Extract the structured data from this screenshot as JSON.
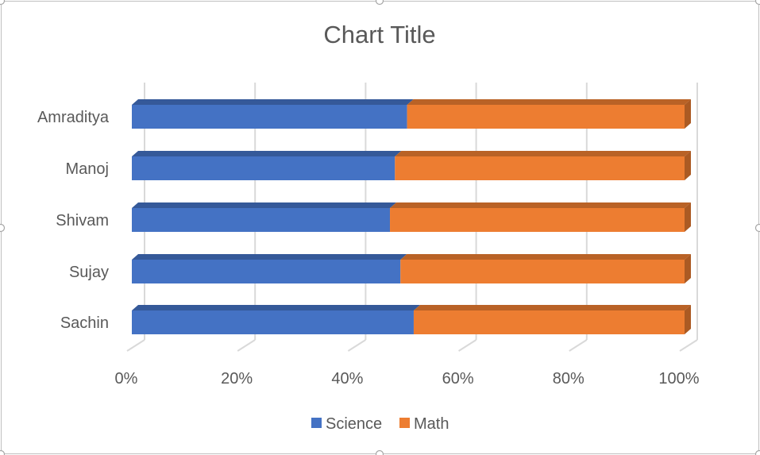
{
  "chart_data": {
    "type": "bar",
    "orientation": "horizontal",
    "stacking": "percent",
    "style": "3d",
    "title": "Chart Title",
    "categories": [
      "Amraditya",
      "Manoj",
      "Shivam",
      "Sujay",
      "Sachin"
    ],
    "series": [
      {
        "name": "Science",
        "values": [
          49.8,
          47.6,
          46.7,
          48.6,
          51.0
        ],
        "color": "#4472C4"
      },
      {
        "name": "Math",
        "values": [
          50.2,
          52.4,
          53.3,
          51.4,
          49.0
        ],
        "color": "#ED7D31"
      }
    ],
    "x_ticks": [
      "0%",
      "20%",
      "40%",
      "60%",
      "80%",
      "100%"
    ],
    "xlim": [
      0,
      100
    ],
    "grid": "vertical",
    "legend": "bottom"
  }
}
